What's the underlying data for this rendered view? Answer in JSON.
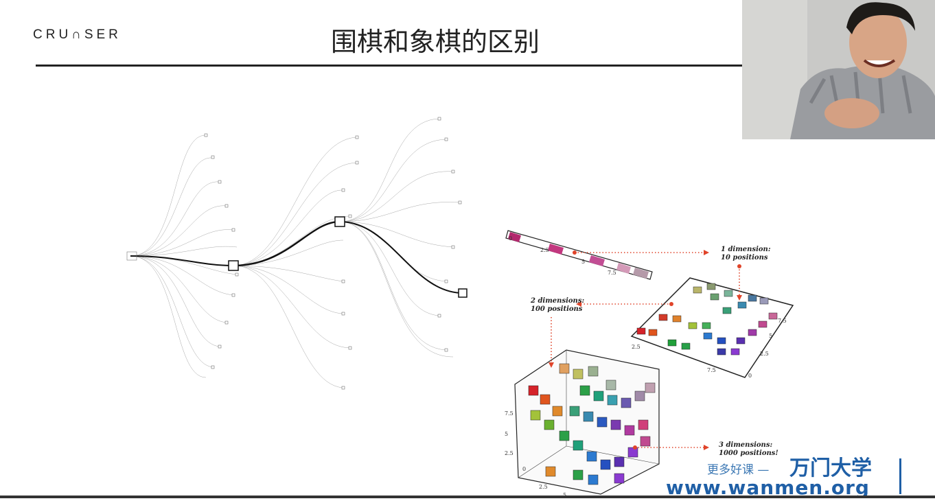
{
  "slide": {
    "logo": "CRU∩SER",
    "title": "围棋和象棋的区别"
  },
  "figure": {
    "dim1": {
      "line1": "1 dimension:",
      "line2": "10 positions"
    },
    "dim2": {
      "line1": "2 dimensions:",
      "line2": "100 positions"
    },
    "dim3": {
      "line1": "3 dimensions:",
      "line2": "1000 positions!"
    },
    "ticks": {
      "t0": "0",
      "t25": "2.5",
      "t5": "5",
      "t75": "7.5"
    }
  },
  "watermark": {
    "promo": "更多好课 —",
    "brand": "万门大学",
    "url": "www.wanmen.org"
  },
  "colors": {
    "accent_red": "#e0442a",
    "brand_blue": "#1f5fa6"
  }
}
